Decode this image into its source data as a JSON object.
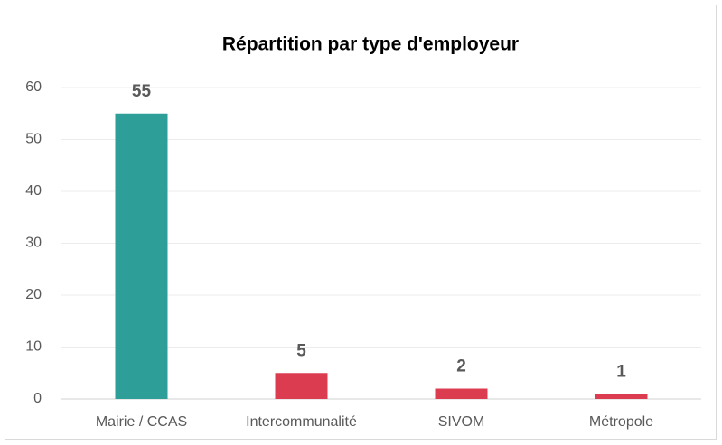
{
  "chart_data": {
    "type": "bar",
    "title": "Répartition par type d'employeur",
    "categories": [
      "Mairie / CCAS",
      "Intercommunalité",
      "SIVOM",
      "Métropole"
    ],
    "values": [
      55,
      5,
      2,
      1
    ],
    "colors": [
      "#2e9e98",
      "#dc3c50",
      "#dc3c50",
      "#dc3c50"
    ],
    "ylim": [
      0,
      60
    ],
    "yticks": [
      0,
      10,
      20,
      30,
      40,
      50,
      60
    ],
    "grid": true
  }
}
